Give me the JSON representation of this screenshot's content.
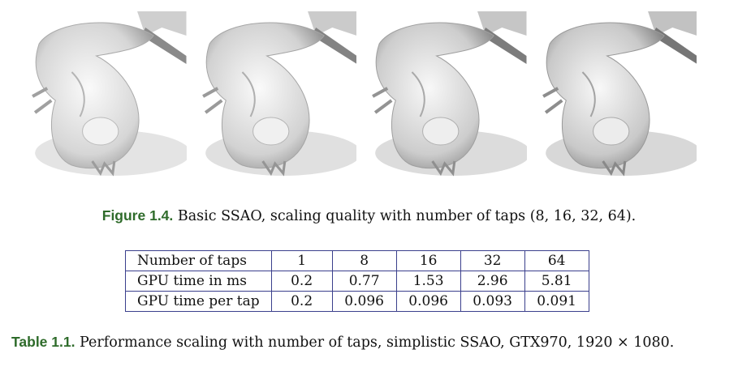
{
  "figure": {
    "label": "Figure 1.4.",
    "caption": " Basic SSAO, scaling quality with number of taps (8, 16, 32, 64).",
    "panels": [
      {
        "icon": "dragon-render-8-taps"
      },
      {
        "icon": "dragon-render-16-taps"
      },
      {
        "icon": "dragon-render-32-taps"
      },
      {
        "icon": "dragon-render-64-taps"
      }
    ]
  },
  "table": {
    "header": [
      "Number of taps",
      "1",
      "8",
      "16",
      "32",
      "64"
    ],
    "rows": [
      [
        "GPU time in ms",
        "0.2",
        "0.77",
        "1.53",
        "2.96",
        "5.81"
      ],
      [
        "GPU time per tap",
        "0.2",
        "0.096",
        "0.096",
        "0.093",
        "0.091"
      ]
    ]
  },
  "table_caption": {
    "label": "Table 1.1.",
    "text": " Performance scaling with number of taps, simplistic SSAO, GTX970, 1920 × 1080."
  },
  "colors": {
    "caption_label": "#2e6b2a",
    "table_border": "#3a3f8c"
  }
}
